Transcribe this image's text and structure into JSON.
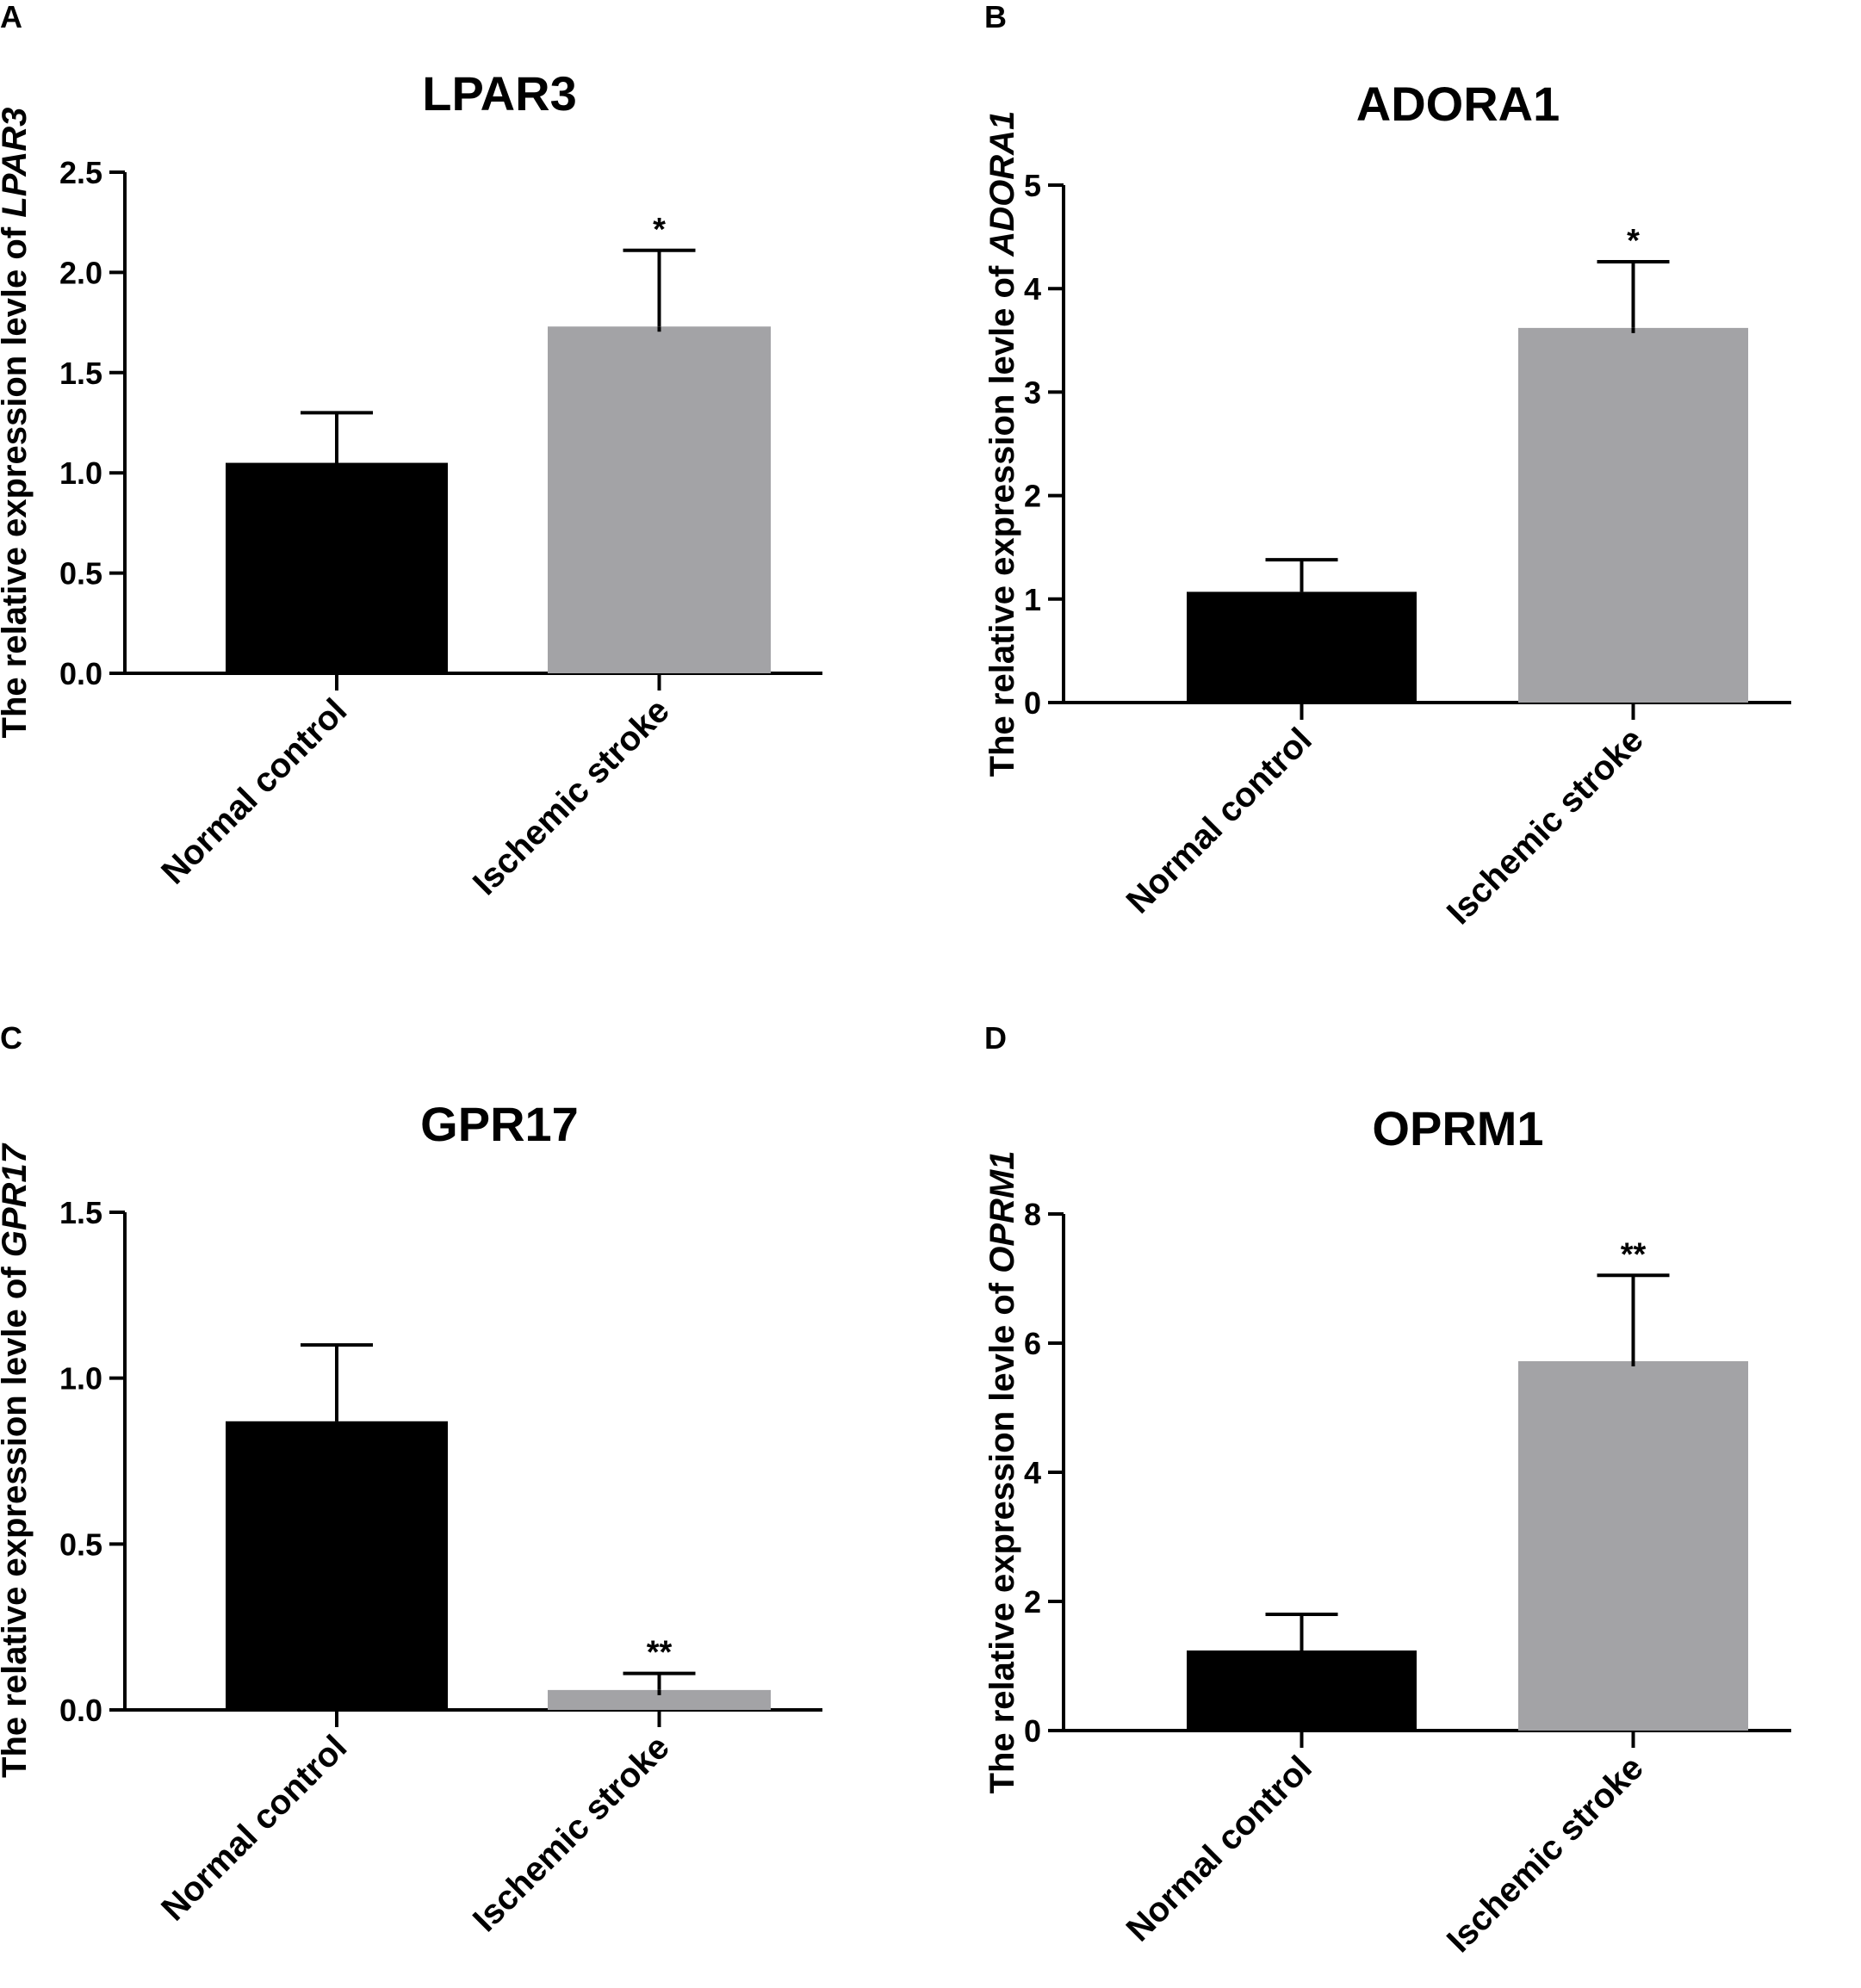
{
  "colors": {
    "control": "#000000",
    "stroke": "#a3a3a6",
    "axis": "#000000"
  },
  "chart_data": [
    {
      "panel_letter": "A",
      "type": "bar",
      "title": "LPAR3",
      "ylabel_prefix": "The relative expression levle of ",
      "ylabel_gene": "LPAR3",
      "categories": [
        "Normal control",
        "Ischemic stroke"
      ],
      "values": [
        1.05,
        1.73
      ],
      "error": [
        0.25,
        0.38
      ],
      "significance": [
        "",
        "*"
      ],
      "ylim": [
        0,
        2.5
      ],
      "yticks": [
        0,
        0.5,
        1.0,
        1.5,
        2.0,
        2.5
      ],
      "ytick_labels": [
        "0.0",
        "0.5",
        "1.0",
        "1.5",
        "2.0",
        "2.5"
      ]
    },
    {
      "panel_letter": "B",
      "type": "bar",
      "title": "ADORA1",
      "ylabel_prefix": "The relative expression levle of ",
      "ylabel_gene": "ADORA1",
      "categories": [
        "Normal control",
        "Ischemic stroke"
      ],
      "values": [
        1.07,
        3.62
      ],
      "error": [
        0.31,
        0.64
      ],
      "significance": [
        "",
        "*"
      ],
      "ylim": [
        0,
        5
      ],
      "yticks": [
        0,
        1,
        2,
        3,
        4,
        5
      ],
      "ytick_labels": [
        "0",
        "1",
        "2",
        "3",
        "4",
        "5"
      ]
    },
    {
      "panel_letter": "C",
      "type": "bar",
      "title": "GPR17",
      "ylabel_prefix": "The relative expression levle of ",
      "ylabel_gene": "GPR17",
      "categories": [
        "Normal control",
        "Ischemic stroke"
      ],
      "values": [
        0.87,
        0.06
      ],
      "error": [
        0.23,
        0.05
      ],
      "significance": [
        "",
        "**"
      ],
      "ylim": [
        0,
        1.5
      ],
      "yticks": [
        0,
        0.5,
        1.0,
        1.5
      ],
      "ytick_labels": [
        "0.0",
        "0.5",
        "1.0",
        "1.5"
      ]
    },
    {
      "panel_letter": "D",
      "type": "bar",
      "title": "OPRM1",
      "ylabel_prefix": "The relative expression levle of ",
      "ylabel_gene": "OPRM1",
      "categories": [
        "Normal control",
        "Ischemic stroke"
      ],
      "values": [
        1.24,
        5.72
      ],
      "error": [
        0.56,
        1.33
      ],
      "significance": [
        "",
        "**"
      ],
      "ylim": [
        0,
        8
      ],
      "yticks": [
        0,
        2,
        4,
        6,
        8
      ],
      "ytick_labels": [
        "0",
        "2",
        "4",
        "6",
        "8"
      ]
    }
  ]
}
